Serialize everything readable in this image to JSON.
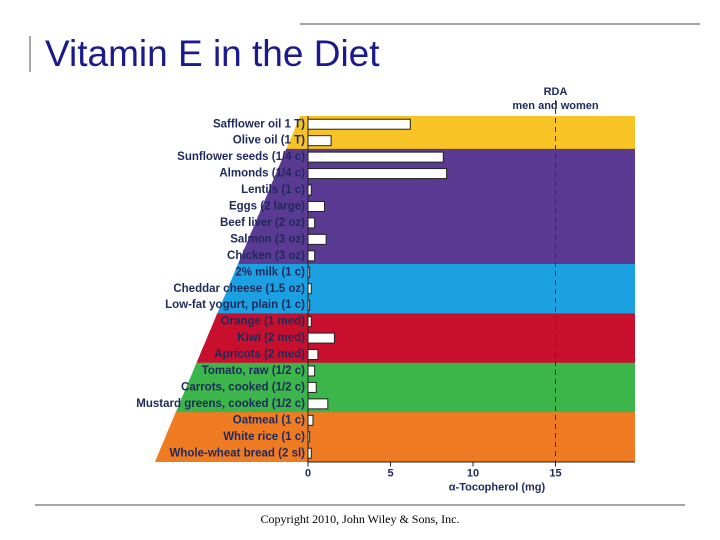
{
  "chart_data": {
    "type": "hbar",
    "title": "Vitamin E in the Diet",
    "categories": [
      "Safflower oil 1 T)",
      "Olive oil (1 T)",
      "Sunflower seeds (1/4 c)",
      "Almonds (1/4 c)",
      "Lentils (1 c)",
      "Eggs (2 large)",
      "Beef liver (2 oz)",
      "Salmon (3 oz)",
      "Chicken (3 oz)",
      "2% milk (1 c)",
      "Cheddar cheese (1.5 oz)",
      "Low-fat yogurt, plain (1 c)",
      "Orange (1 med)",
      "Kiwi (2 med)",
      "Apricots (2 med)",
      "Tomato, raw (1/2 c)",
      "Carrots, cooked (1/2 c)",
      "Mustard greens, cooked (1/2 c)",
      "Oatmeal (1 c)",
      "White rice (1 c)",
      "Whole-wheat bread (2 sl)"
    ],
    "values": [
      6.2,
      1.4,
      8.2,
      8.4,
      0.2,
      1.0,
      0.4,
      1.1,
      0.4,
      0.1,
      0.2,
      0.1,
      0.2,
      1.6,
      0.6,
      0.4,
      0.5,
      1.2,
      0.3,
      0.1,
      0.2
    ],
    "category_colors": [
      "#f7c325",
      "#f7c325",
      "#5b3a93",
      "#5b3a93",
      "#5b3a93",
      "#5b3a93",
      "#5b3a93",
      "#5b3a93",
      "#5b3a93",
      "#1ba1e2",
      "#1ba1e2",
      "#1ba1e2",
      "#c8102e",
      "#c8102e",
      "#c8102e",
      "#3cb54a",
      "#3cb54a",
      "#3cb54a",
      "#ef7b22",
      "#ef7b22",
      "#ef7b22"
    ],
    "color": "#ffffff",
    "xlim": [
      0,
      20
    ],
    "xticks": [
      0,
      5,
      10,
      15
    ],
    "xlabel": "α-Tocopherol (mg)",
    "reference_line": {
      "value": 15,
      "label_lines": [
        "RDA",
        "men and women"
      ]
    },
    "footer": "Copyright 2010, John Wiley & Sons, Inc."
  }
}
